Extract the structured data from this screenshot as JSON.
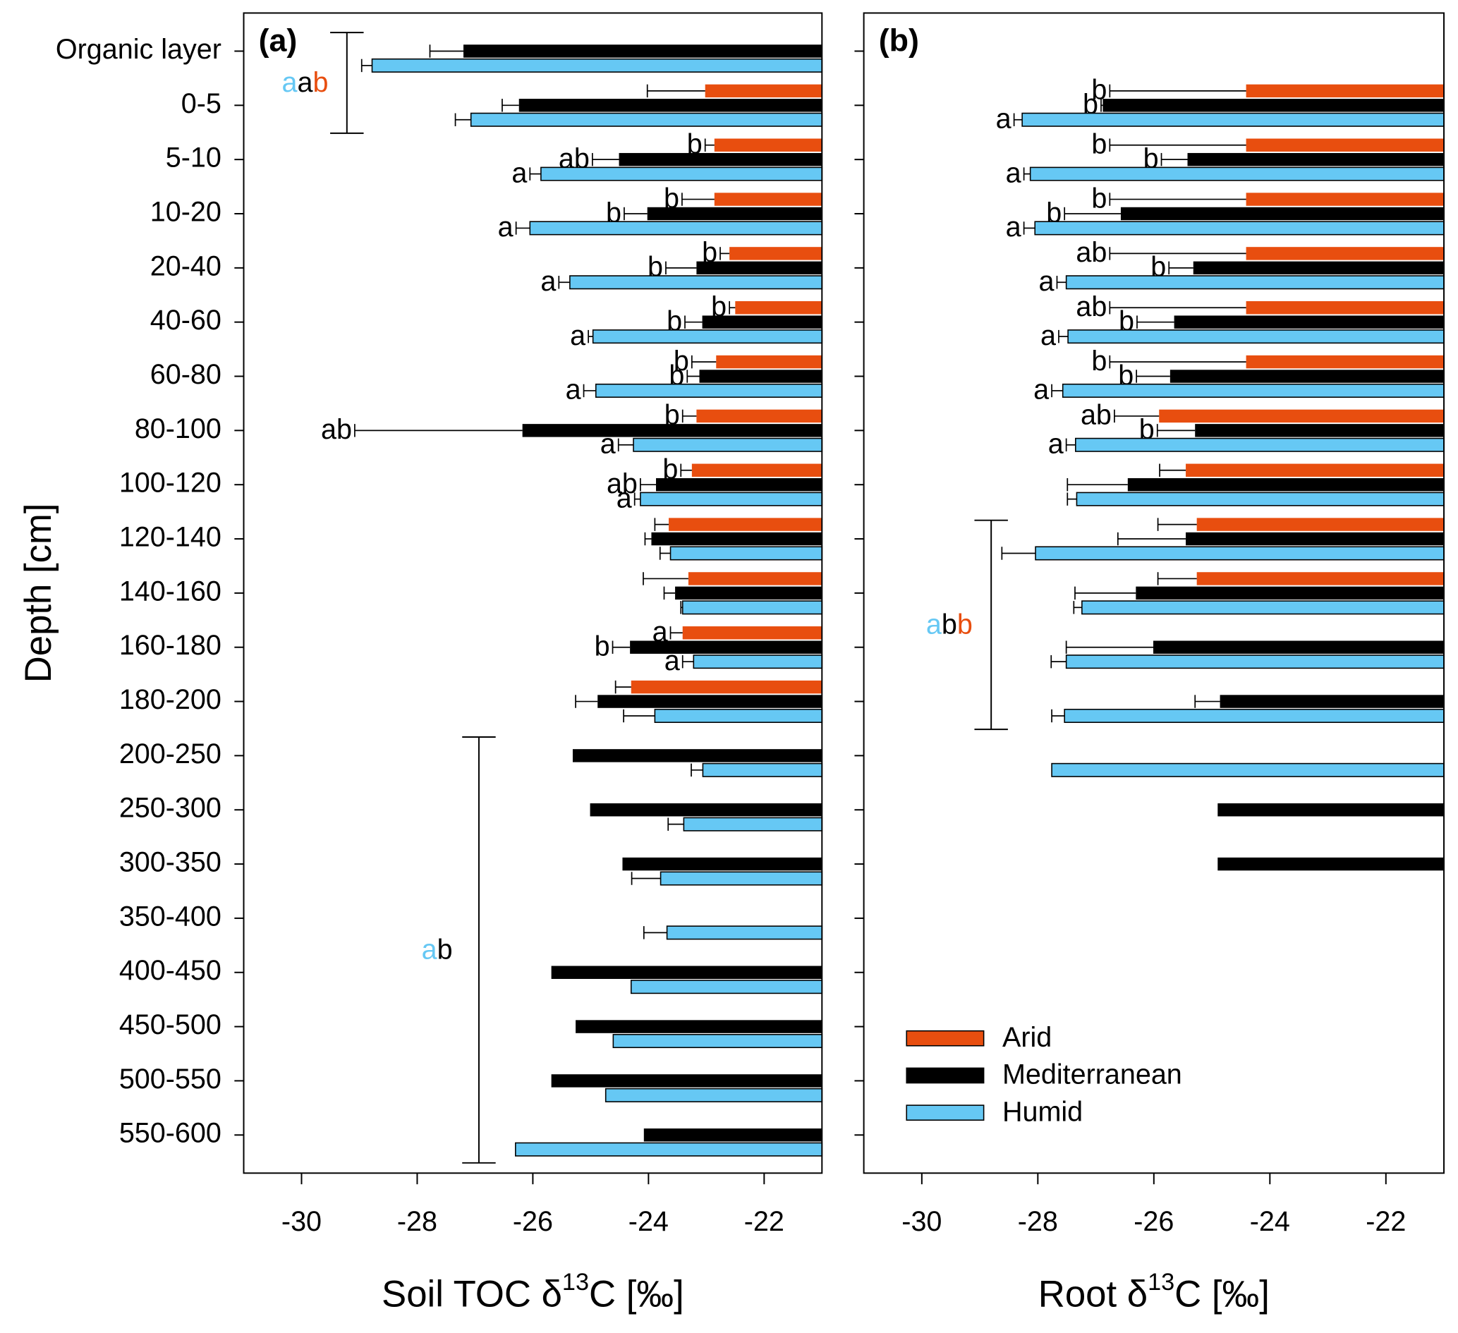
{
  "chart_data": {
    "type": "bar",
    "orientation": "horizontal",
    "y_label": "Depth [cm]",
    "categories": [
      "Organic layer",
      "0-5",
      "5-10",
      "10-20",
      "20-40",
      "40-60",
      "60-80",
      "80-100",
      "100-120",
      "120-140",
      "140-160",
      "160-180",
      "180-200",
      "200-250",
      "250-300",
      "300-350",
      "350-400",
      "400-450",
      "450-500",
      "500-550",
      "550-600"
    ],
    "series": [
      {
        "name": "Arid",
        "color": "#e84e0f"
      },
      {
        "name": "Mediterranean",
        "color": "#000000"
      },
      {
        "name": "Humid",
        "color": "#66c8f4"
      }
    ],
    "legend": "bottom-left",
    "panels": [
      {
        "label": "(a)",
        "x_label": {
          "prefix": "Soil TOC δ",
          "sup": "13",
          "suffix": "C [‰]"
        },
        "xlim": [
          -31,
          -21
        ],
        "xticks": [
          -30,
          -28,
          -26,
          -24,
          -22
        ],
        "series": [
          {
            "values": [
              null,
              -23.02,
              -22.86,
              -22.86,
              -22.6,
              -22.5,
              -22.83,
              -23.17,
              -23.25,
              -23.65,
              -23.31,
              -23.41,
              -24.3,
              null,
              null,
              null,
              null,
              null,
              null,
              null,
              null
            ],
            "errors": [
              null,
              1.0,
              0.16,
              0.56,
              0.16,
              0.1,
              0.42,
              0.24,
              0.19,
              0.24,
              0.78,
              0.21,
              0.27,
              null,
              null,
              null,
              null,
              null,
              null,
              null,
              null
            ],
            "letters": [
              null,
              null,
              "b",
              "b",
              "b",
              "b",
              "b",
              "b",
              "b",
              null,
              null,
              "a",
              null,
              null,
              null,
              null,
              null,
              null,
              null,
              null,
              null
            ]
          },
          {
            "values": [
              -27.2,
              -26.24,
              -24.51,
              -24.02,
              -23.17,
              -23.07,
              -23.12,
              -26.18,
              -23.87,
              -23.95,
              -23.54,
              -24.32,
              -24.88,
              -25.31,
              -25.01,
              -24.45,
              null,
              -25.68,
              -25.26,
              -25.68,
              -24.08
            ],
            "errors": [
              0.58,
              0.29,
              0.46,
              0.4,
              0.53,
              0.3,
              0.21,
              2.9,
              0.27,
              0.11,
              0.19,
              0.3,
              0.38,
              null,
              null,
              null,
              null,
              null,
              null,
              null,
              null
            ],
            "letters": [
              null,
              null,
              "ab",
              "b",
              "b",
              "b",
              "b",
              "ab",
              "ab",
              null,
              null,
              "b",
              null,
              null,
              null,
              null,
              null,
              null,
              null,
              null,
              null
            ]
          },
          {
            "values": [
              -28.78,
              -27.07,
              -25.86,
              -26.05,
              -25.36,
              -24.96,
              -24.91,
              -24.26,
              -24.14,
              -23.62,
              -23.41,
              -23.22,
              -23.89,
              -23.06,
              -23.39,
              -23.79,
              -23.68,
              -24.3,
              -24.61,
              -24.74,
              -26.3
            ],
            "errors": [
              0.18,
              0.27,
              0.19,
              0.24,
              0.19,
              0.08,
              0.21,
              0.26,
              0.1,
              0.18,
              0.03,
              0.19,
              0.54,
              0.2,
              0.27,
              0.5,
              0.4,
              null,
              null,
              null,
              null
            ],
            "letters": [
              null,
              null,
              "a",
              "a",
              "a",
              "a",
              "a",
              "a",
              "a",
              null,
              null,
              "a",
              null,
              null,
              null,
              null,
              null,
              null,
              null,
              null,
              null
            ]
          }
        ],
        "groups": [
          {
            "start": 0,
            "end": 1,
            "letters": [
              "b",
              "a",
              "a"
            ]
          },
          {
            "start": 13,
            "end": 20,
            "letters": [
              null,
              "b",
              "a"
            ]
          }
        ]
      },
      {
        "label": "(b)",
        "x_label": {
          "prefix": "Root δ",
          "sup": "13",
          "suffix": "C [‰]"
        },
        "xlim": [
          -31,
          -21
        ],
        "xticks": [
          -30,
          -28,
          -26,
          -24,
          -22
        ],
        "series": [
          {
            "values": [
              null,
              -24.41,
              -24.41,
              -24.41,
              -24.41,
              -24.41,
              -24.41,
              -25.91,
              -25.45,
              -25.26,
              -25.26,
              null,
              null,
              null,
              null,
              null,
              null,
              null,
              null,
              null,
              null
            ],
            "errors": [
              null,
              2.35,
              2.35,
              2.35,
              2.35,
              2.35,
              2.35,
              0.77,
              0.45,
              0.67,
              0.67,
              null,
              null,
              null,
              null,
              null,
              null,
              null,
              null,
              null,
              null
            ],
            "letters": [
              null,
              "b",
              "b",
              "b",
              "ab",
              "ab",
              "b",
              "ab",
              null,
              null,
              null,
              null,
              null,
              null,
              null,
              null,
              null,
              null,
              null,
              null,
              null
            ]
          },
          {
            "values": [
              null,
              -26.88,
              -25.42,
              -26.57,
              -25.32,
              -25.65,
              -25.72,
              -25.29,
              -26.45,
              -25.45,
              -26.31,
              -26.01,
              -24.86,
              null,
              -24.9,
              -24.9,
              null,
              null,
              null,
              null,
              null
            ],
            "errors": [
              null,
              0.03,
              0.45,
              0.97,
              0.42,
              0.64,
              0.58,
              0.65,
              1.04,
              1.17,
              1.05,
              1.5,
              0.43,
              null,
              null,
              null,
              null,
              null,
              null,
              null,
              null
            ],
            "letters": [
              null,
              "b",
              "b",
              "b",
              "b",
              "b",
              "b",
              "b",
              null,
              null,
              null,
              null,
              null,
              null,
              null,
              null,
              null,
              null,
              null,
              null,
              null
            ]
          },
          {
            "values": [
              null,
              -28.27,
              -28.13,
              -28.05,
              -27.51,
              -27.48,
              -27.57,
              -27.35,
              -27.33,
              -28.04,
              -27.24,
              -27.51,
              -27.54,
              -27.76,
              null,
              null,
              null,
              null,
              null,
              null,
              null
            ],
            "errors": [
              null,
              0.14,
              0.11,
              0.19,
              0.16,
              0.16,
              0.19,
              0.16,
              0.16,
              0.58,
              0.14,
              0.26,
              0.22,
              null,
              null,
              null,
              null,
              null,
              null,
              null,
              null
            ],
            "letters": [
              null,
              "a",
              "a",
              "a",
              "a",
              "a",
              "a",
              "a",
              null,
              null,
              null,
              null,
              null,
              null,
              null,
              null,
              null,
              null,
              null,
              null,
              null
            ]
          }
        ],
        "groups": [
          {
            "start": 9,
            "end": 12,
            "letters": [
              "b",
              "b",
              "a"
            ]
          }
        ]
      }
    ]
  }
}
